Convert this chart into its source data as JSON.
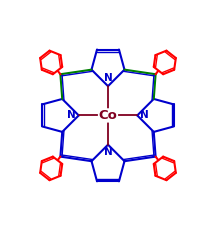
{
  "blue": "#0000cc",
  "red": "#ff0000",
  "cobalt_color": "#800020",
  "green_bond": "#008000",
  "bg": "#ffffff",
  "lw_main": 1.5,
  "lw_double_inner": 1.0,
  "lw_phenyl": 1.5,
  "xlim": [
    -1.18,
    1.18
  ],
  "ylim": [
    -1.28,
    1.18
  ]
}
